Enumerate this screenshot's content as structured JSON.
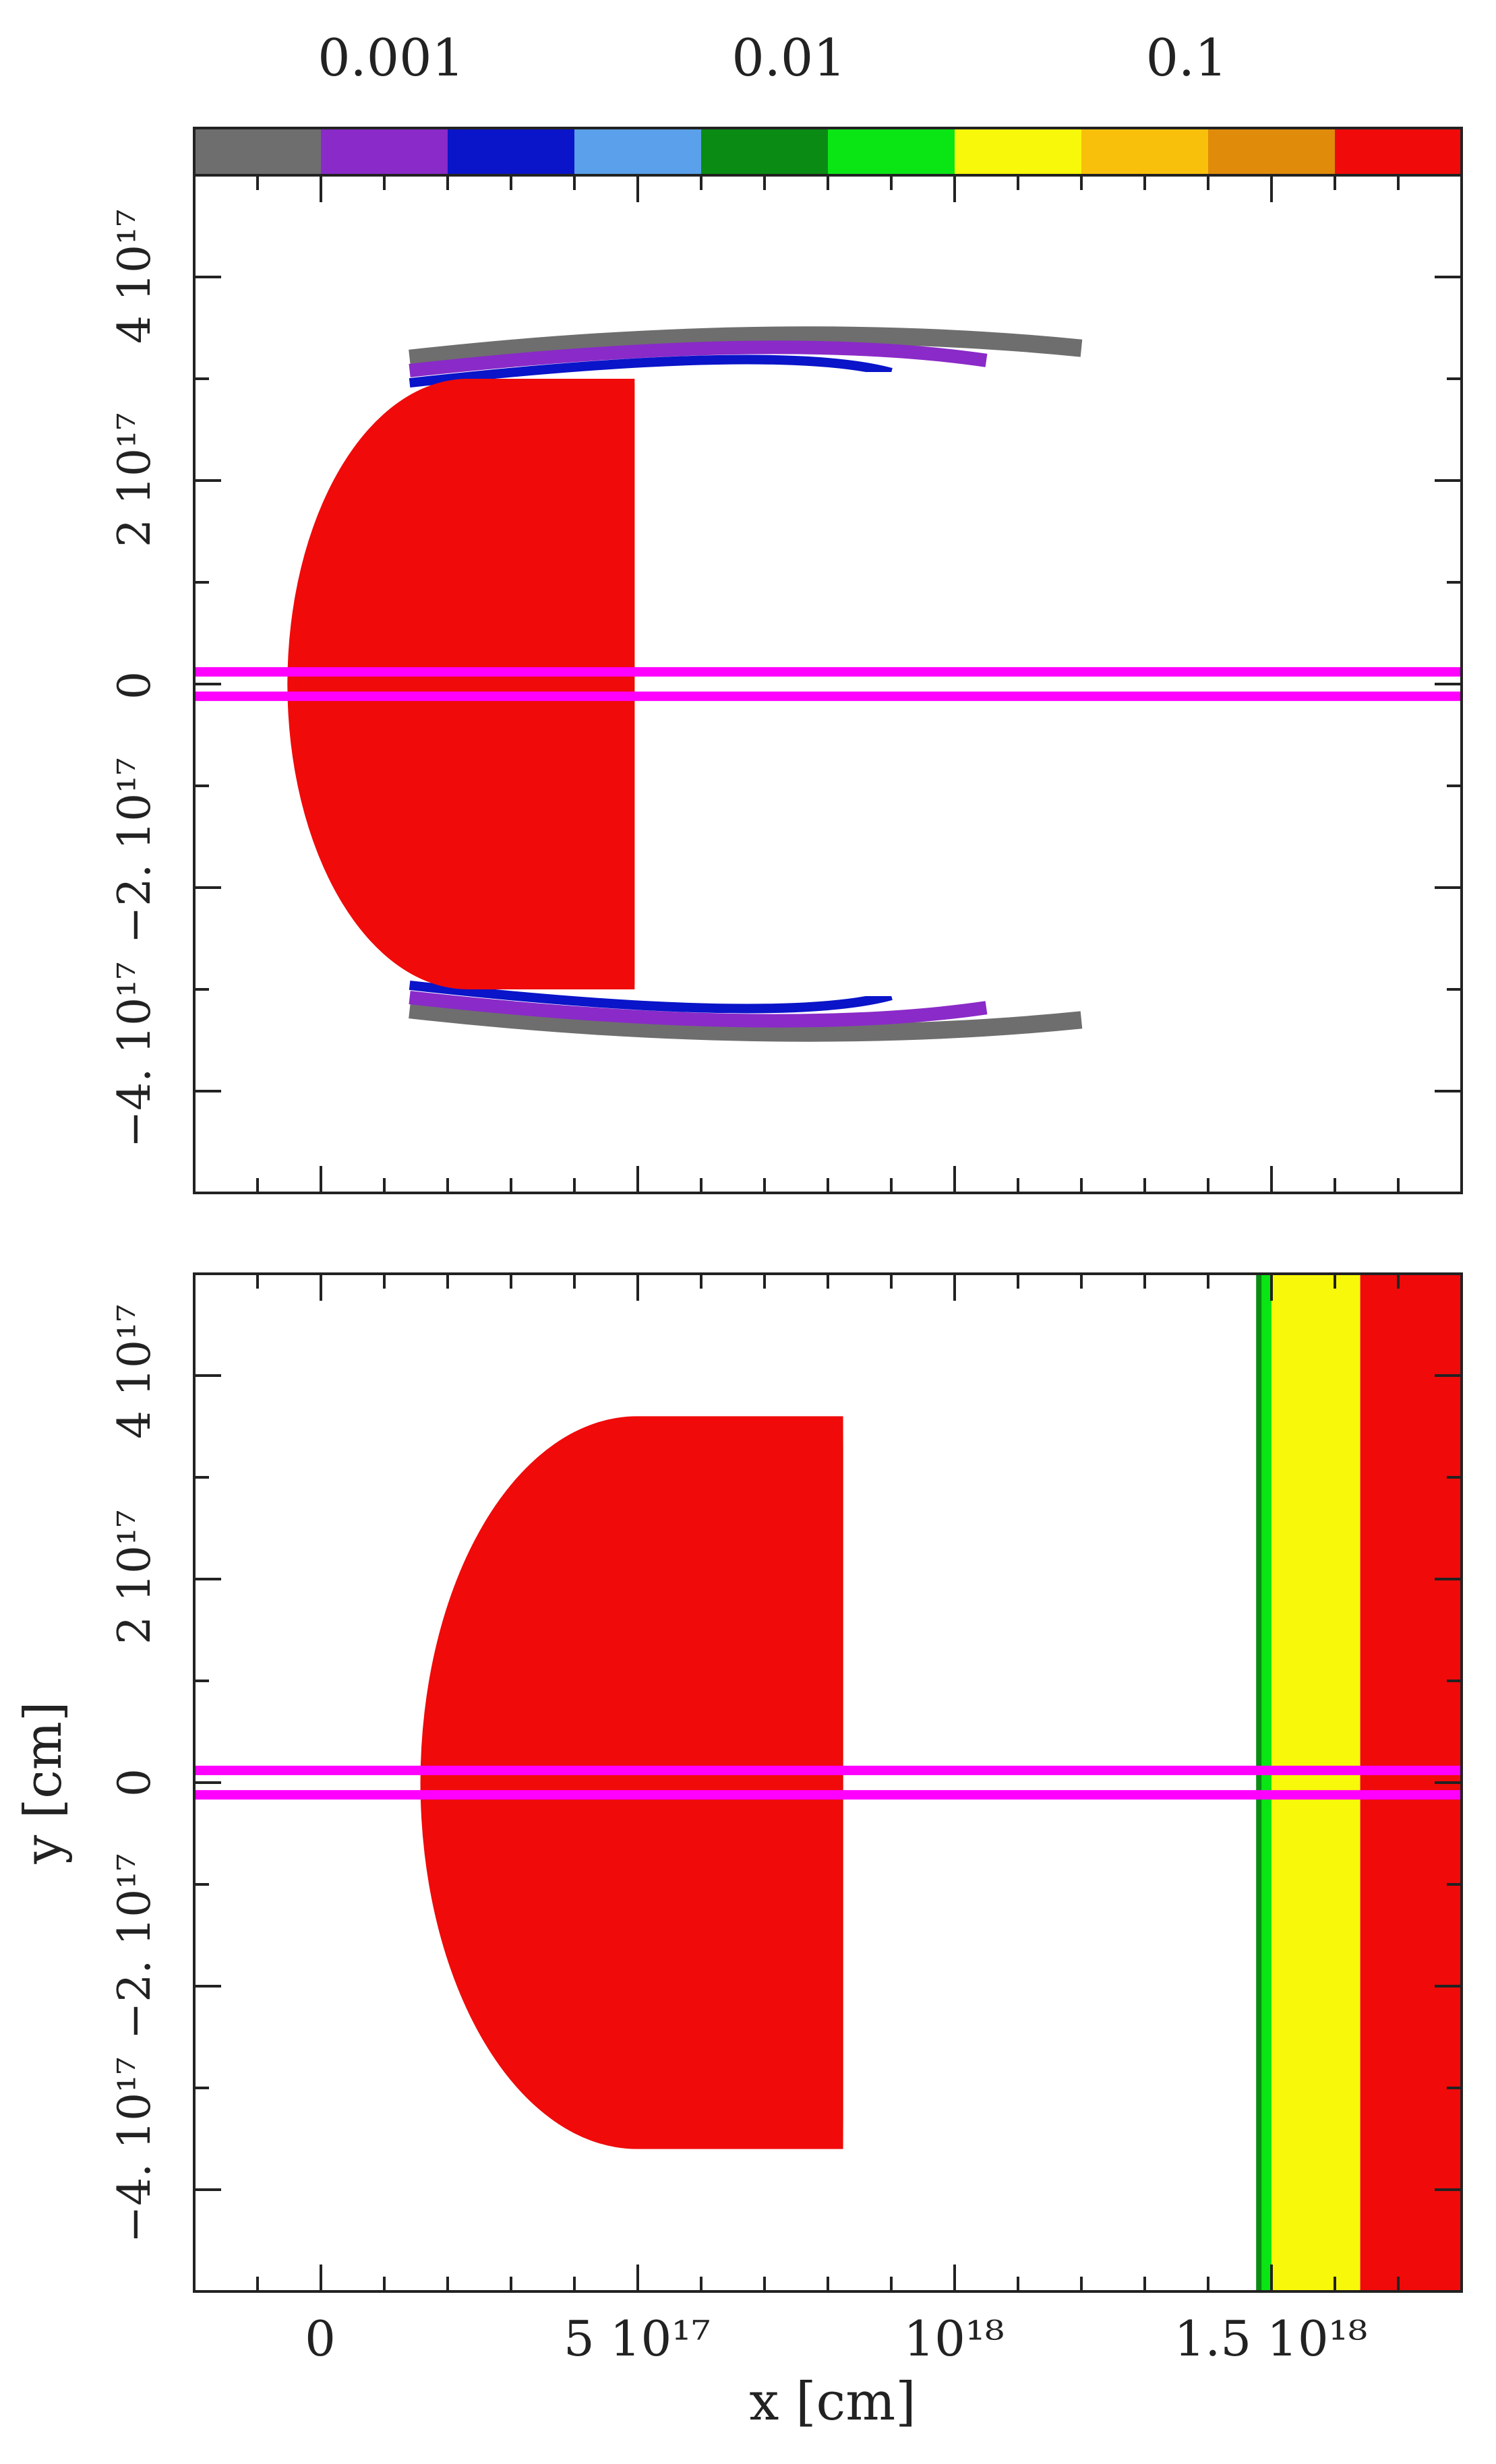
{
  "colorbar": {
    "tick_labels": [
      "0.001",
      "0.01",
      "0.1"
    ],
    "colors": [
      "#6e6e6e",
      "#8a2ac8",
      "#0a14c8",
      "#5aa0ea",
      "#0a8c14",
      "#0ae614",
      "#f8f80a",
      "#f8c00a",
      "#e08c0a",
      "#f00a0a"
    ]
  },
  "chart_data": [
    {
      "type": "heatmap",
      "panel": "top",
      "title": "",
      "xlabel": "",
      "ylabel": "",
      "xlim": [
        -2e+17,
        1.8e+18
      ],
      "ylim": [
        -5e+17,
        5e+17
      ],
      "x_tick_labels": [],
      "y_tick_labels": [
        "−4. 10¹⁷",
        "−2. 10¹⁷",
        "0",
        "2 10¹⁷",
        "4 10¹⁷"
      ],
      "color_scale": "log",
      "color_range": [
        0.0003,
        0.3
      ],
      "axis_lines_y": [
        1.2e+16,
        -1.2e+16
      ],
      "axis_line_color": "#ff00ff",
      "bow": {
        "apex_x": -4e+16,
        "radius": 3e+17,
        "bands_x": [
          -3.8e+16,
          5000000000000000.0,
          4e+16,
          7.5e+16,
          1.1e+17,
          1.5e+17,
          1.85e+17,
          2.05e+17,
          2.25e+17
        ]
      },
      "wings": {
        "y_abs": 3.2e+17,
        "x_end": 1.2e+18
      }
    },
    {
      "type": "heatmap",
      "panel": "bottom",
      "title": "",
      "xlabel": "x [cm]",
      "ylabel": "y [cm]",
      "xlim": [
        -2e+17,
        1.8e+18
      ],
      "ylim": [
        -5e+17,
        5e+17
      ],
      "x_tick_labels": [
        "0",
        "5 10¹⁷",
        "10¹⁸",
        "1.5 10¹⁸"
      ],
      "y_tick_labels": [
        "−4. 10¹⁷",
        "−2. 10¹⁷",
        "0",
        "2 10¹⁷",
        "4 10¹⁷"
      ],
      "color_scale": "log",
      "color_range": [
        0.0003,
        0.3
      ],
      "axis_lines_y": [
        1.2e+16,
        -1.2e+16
      ],
      "axis_line_color": "#ff00ff",
      "bow": {
        "apex_x": 1.7e+17,
        "radius": 3.6e+17,
        "bands_x": [
          1.75e+17,
          2.2e+17,
          2.6e+17,
          3e+17,
          3.4e+17,
          3.8e+17,
          4.3e+17,
          5e+17
        ]
      },
      "shock_front_x": 1.48e+18,
      "slab_bands_x": [
        1.48e+18,
        1.5e+18,
        1.64e+18,
        1.8e+18
      ]
    }
  ]
}
